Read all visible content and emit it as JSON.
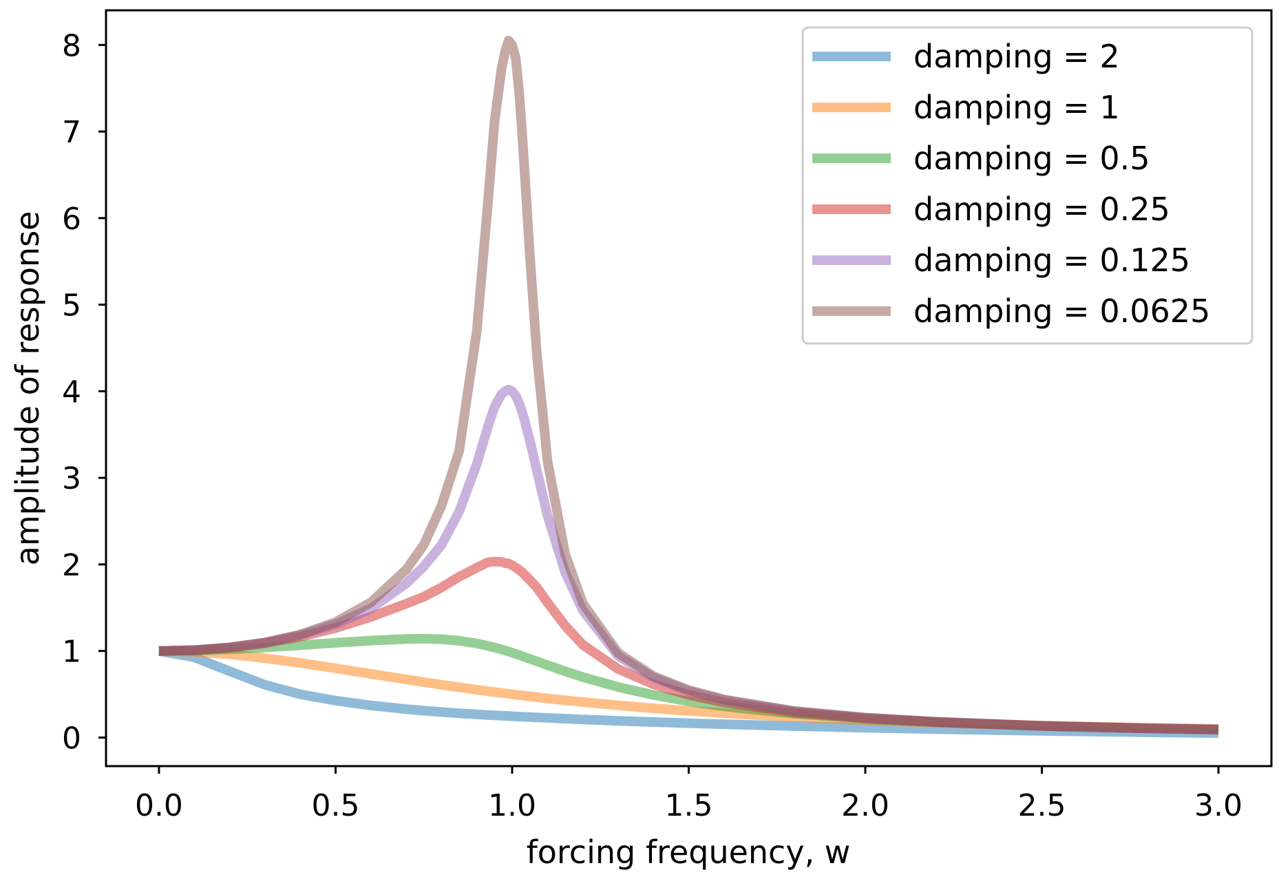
{
  "chart_data": {
    "type": "line",
    "title": "",
    "xlabel": "forcing frequency, w",
    "ylabel": "amplitude of response",
    "xlim": [
      -0.15,
      3.15
    ],
    "ylim": [
      -0.33,
      8.4
    ],
    "xticks": [
      "0.0",
      "0.5",
      "1.0",
      "1.5",
      "2.0",
      "2.5",
      "3.0"
    ],
    "yticks": [
      "0",
      "1",
      "2",
      "3",
      "4",
      "5",
      "6",
      "7",
      "8"
    ],
    "grid": false,
    "legend_position": "top-right",
    "x": [
      0.0,
      0.1,
      0.2,
      0.3,
      0.4,
      0.5,
      0.6,
      0.7,
      0.75,
      0.8,
      0.85,
      0.9,
      0.93,
      0.95,
      0.97,
      0.98,
      0.99,
      1.0,
      1.01,
      1.02,
      1.03,
      1.05,
      1.07,
      1.1,
      1.15,
      1.2,
      1.3,
      1.4,
      1.5,
      1.6,
      1.8,
      2.0,
      2.2,
      2.5,
      2.8,
      3.0
    ],
    "series": [
      {
        "name": "damping = 2",
        "color": "#1f77b4",
        "values": [
          1.0,
          0.926,
          0.766,
          0.609,
          0.5,
          0.426,
          0.371,
          0.328,
          0.311,
          0.295,
          0.28,
          0.268,
          0.26,
          0.256,
          0.252,
          0.25,
          0.248,
          0.246,
          0.244,
          0.242,
          0.24,
          0.236,
          0.232,
          0.227,
          0.218,
          0.209,
          0.193,
          0.179,
          0.166,
          0.154,
          0.132,
          0.113,
          0.097,
          0.077,
          0.061,
          0.052
        ]
      },
      {
        "name": "damping = 1",
        "color": "#ff7f0e",
        "values": [
          1.0,
          0.99,
          0.962,
          0.917,
          0.862,
          0.8,
          0.735,
          0.671,
          0.64,
          0.61,
          0.581,
          0.552,
          0.536,
          0.526,
          0.515,
          0.51,
          0.505,
          0.5,
          0.495,
          0.49,
          0.485,
          0.476,
          0.466,
          0.452,
          0.431,
          0.41,
          0.372,
          0.338,
          0.308,
          0.281,
          0.236,
          0.2,
          0.171,
          0.138,
          0.113,
          0.1
        ]
      },
      {
        "name": "damping = 0.5",
        "color": "#2ca02c",
        "values": [
          1.0,
          1.005,
          1.02,
          1.041,
          1.066,
          1.094,
          1.12,
          1.139,
          1.142,
          1.136,
          1.118,
          1.087,
          1.06,
          1.04,
          1.018,
          1.006,
          0.993,
          0.98,
          0.966,
          0.952,
          0.938,
          0.909,
          0.88,
          0.836,
          0.765,
          0.699,
          0.584,
          0.492,
          0.419,
          0.36,
          0.275,
          0.218,
          0.178,
          0.134,
          0.106,
          0.092
        ]
      },
      {
        "name": "damping = 0.25",
        "color": "#d62728",
        "values": [
          1.0,
          1.009,
          1.038,
          1.09,
          1.165,
          1.265,
          1.393,
          1.546,
          1.627,
          1.733,
          1.858,
          1.962,
          2.023,
          2.032,
          2.03,
          2.015,
          2.01,
          1.99,
          1.965,
          1.937,
          1.903,
          1.82,
          1.733,
          1.561,
          1.292,
          1.072,
          0.792,
          0.615,
          0.493,
          0.406,
          0.291,
          0.222,
          0.178,
          0.133,
          0.105,
          0.091
        ]
      },
      {
        "name": "damping = 0.125",
        "color": "#9467bd",
        "values": [
          1.0,
          1.01,
          1.041,
          1.097,
          1.183,
          1.308,
          1.49,
          1.78,
          1.977,
          2.225,
          2.61,
          3.161,
          3.572,
          3.818,
          3.966,
          4.0,
          4.02,
          4.0,
          3.95,
          3.86,
          3.74,
          3.436,
          3.084,
          2.566,
          1.91,
          1.469,
          0.943,
          0.692,
          0.537,
          0.433,
          0.303,
          0.229,
          0.182,
          0.135,
          0.106,
          0.092
        ]
      },
      {
        "name": "damping = 0.0625",
        "color": "#8c564b",
        "values": [
          1.0,
          1.01,
          1.042,
          1.099,
          1.19,
          1.333,
          1.561,
          1.94,
          2.228,
          2.678,
          3.311,
          4.7,
          6.11,
          7.107,
          7.728,
          7.92,
          8.05,
          8.0,
          7.85,
          7.446,
          6.877,
          5.583,
          4.426,
          3.196,
          2.12,
          1.55,
          0.978,
          0.71,
          0.549,
          0.44,
          0.306,
          0.231,
          0.183,
          0.135,
          0.106,
          0.092
        ]
      }
    ]
  }
}
